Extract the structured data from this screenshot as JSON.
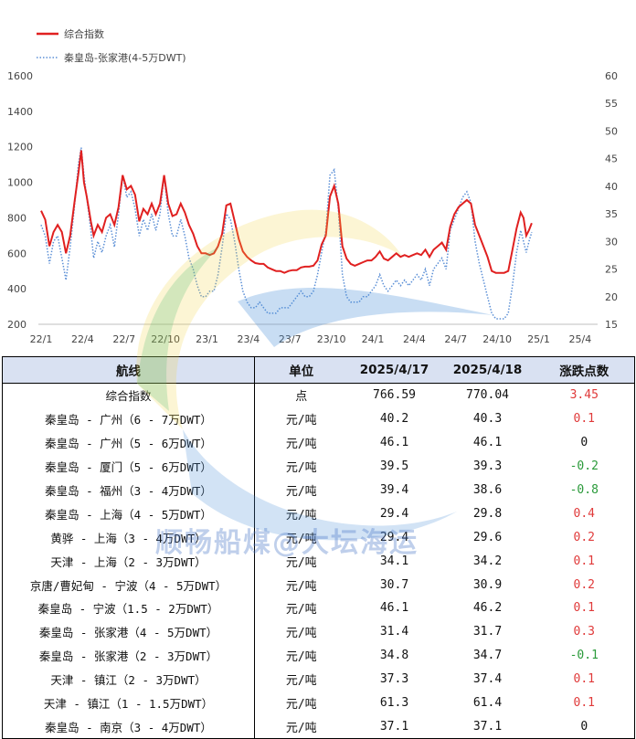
{
  "chart_data": {
    "type": "line",
    "series": [
      {
        "name": "综合指数",
        "axis": "left",
        "color": "#e02020"
      },
      {
        "name": "秦皇岛-张家港(4-5万DWT)",
        "axis": "right",
        "color": "#5b8fd6",
        "style": "dotted"
      }
    ],
    "x_tick_labels": [
      "22/1",
      "22/4",
      "22/7",
      "22/10",
      "23/1",
      "23/4",
      "23/7",
      "23/10",
      "24/1",
      "24/4",
      "24/7",
      "24/10",
      "25/1",
      "25/4"
    ],
    "x_range_months": [
      0,
      40
    ],
    "ylim_left": [
      200,
      1600
    ],
    "yticks_left": [
      200,
      400,
      600,
      800,
      1000,
      1200,
      1400,
      1600
    ],
    "ylim_right": [
      15,
      60
    ],
    "yticks_right": [
      15,
      20,
      25,
      30,
      35,
      40,
      45,
      50,
      55,
      60
    ],
    "composite": [
      [
        0,
        840
      ],
      [
        0.3,
        790
      ],
      [
        0.6,
        640
      ],
      [
        0.9,
        720
      ],
      [
        1.2,
        760
      ],
      [
        1.5,
        720
      ],
      [
        1.8,
        600
      ],
      [
        2.1,
        700
      ],
      [
        2.4,
        880
      ],
      [
        2.7,
        1050
      ],
      [
        2.9,
        1180
      ],
      [
        3.1,
        1000
      ],
      [
        3.3,
        920
      ],
      [
        3.6,
        780
      ],
      [
        3.8,
        700
      ],
      [
        4.1,
        760
      ],
      [
        4.4,
        720
      ],
      [
        4.7,
        800
      ],
      [
        5,
        820
      ],
      [
        5.3,
        760
      ],
      [
        5.6,
        860
      ],
      [
        5.9,
        1040
      ],
      [
        6.2,
        960
      ],
      [
        6.5,
        980
      ],
      [
        6.8,
        930
      ],
      [
        7.1,
        780
      ],
      [
        7.4,
        850
      ],
      [
        7.7,
        820
      ],
      [
        8,
        880
      ],
      [
        8.3,
        820
      ],
      [
        8.6,
        880
      ],
      [
        8.9,
        1040
      ],
      [
        9.2,
        880
      ],
      [
        9.5,
        810
      ],
      [
        9.8,
        820
      ],
      [
        10.1,
        880
      ],
      [
        10.4,
        830
      ],
      [
        10.7,
        760
      ],
      [
        11,
        710
      ],
      [
        11.3,
        640
      ],
      [
        11.6,
        600
      ],
      [
        11.9,
        600
      ],
      [
        12.2,
        590
      ],
      [
        12.5,
        600
      ],
      [
        12.8,
        640
      ],
      [
        13.1,
        710
      ],
      [
        13.4,
        870
      ],
      [
        13.7,
        880
      ],
      [
        14,
        780
      ],
      [
        14.3,
        680
      ],
      [
        14.6,
        610
      ],
      [
        14.9,
        580
      ],
      [
        15.2,
        560
      ],
      [
        15.5,
        545
      ],
      [
        15.8,
        540
      ],
      [
        16.1,
        540
      ],
      [
        16.4,
        520
      ],
      [
        16.7,
        510
      ],
      [
        17,
        500
      ],
      [
        17.3,
        500
      ],
      [
        17.6,
        490
      ],
      [
        17.9,
        500
      ],
      [
        18.2,
        505
      ],
      [
        18.5,
        505
      ],
      [
        18.8,
        520
      ],
      [
        19.1,
        525
      ],
      [
        19.4,
        525
      ],
      [
        19.7,
        530
      ],
      [
        20,
        560
      ],
      [
        20.3,
        650
      ],
      [
        20.6,
        700
      ],
      [
        20.9,
        920
      ],
      [
        21.2,
        980
      ],
      [
        21.5,
        880
      ],
      [
        21.8,
        640
      ],
      [
        22.1,
        570
      ],
      [
        22.4,
        540
      ],
      [
        22.7,
        530
      ],
      [
        23,
        540
      ],
      [
        23.3,
        550
      ],
      [
        23.6,
        560
      ],
      [
        23.9,
        560
      ],
      [
        24.2,
        580
      ],
      [
        24.5,
        610
      ],
      [
        24.8,
        570
      ],
      [
        25.1,
        560
      ],
      [
        25.4,
        580
      ],
      [
        25.7,
        600
      ],
      [
        26,
        580
      ],
      [
        26.3,
        590
      ],
      [
        26.6,
        580
      ],
      [
        26.9,
        590
      ],
      [
        27.2,
        600
      ],
      [
        27.5,
        590
      ],
      [
        27.8,
        620
      ],
      [
        28.1,
        580
      ],
      [
        28.4,
        620
      ],
      [
        28.7,
        640
      ],
      [
        29,
        660
      ],
      [
        29.3,
        620
      ],
      [
        29.6,
        750
      ],
      [
        29.9,
        820
      ],
      [
        30.2,
        860
      ],
      [
        30.5,
        880
      ],
      [
        30.8,
        900
      ],
      [
        31.1,
        880
      ],
      [
        31.4,
        760
      ],
      [
        31.7,
        700
      ],
      [
        32,
        640
      ],
      [
        32.3,
        580
      ],
      [
        32.6,
        500
      ],
      [
        32.9,
        490
      ],
      [
        33.2,
        490
      ],
      [
        33.5,
        490
      ],
      [
        33.8,
        500
      ],
      [
        34.1,
        620
      ],
      [
        34.4,
        740
      ],
      [
        34.7,
        830
      ],
      [
        34.9,
        800
      ],
      [
        35.1,
        700
      ],
      [
        35.3,
        730
      ],
      [
        35.5,
        770
      ]
    ],
    "route_qhd_zjg": [
      [
        0,
        33
      ],
      [
        0.3,
        31
      ],
      [
        0.6,
        26
      ],
      [
        0.9,
        30
      ],
      [
        1.2,
        31
      ],
      [
        1.5,
        27
      ],
      [
        1.8,
        23
      ],
      [
        2.1,
        29
      ],
      [
        2.4,
        36
      ],
      [
        2.7,
        44
      ],
      [
        2.9,
        47
      ],
      [
        3.1,
        42
      ],
      [
        3.3,
        38
      ],
      [
        3.6,
        32
      ],
      [
        3.8,
        27
      ],
      [
        4.1,
        30
      ],
      [
        4.4,
        28
      ],
      [
        4.7,
        31
      ],
      [
        5,
        33
      ],
      [
        5.3,
        29
      ],
      [
        5.6,
        35
      ],
      [
        5.9,
        42
      ],
      [
        6.2,
        38
      ],
      [
        6.5,
        39
      ],
      [
        6.8,
        36
      ],
      [
        7.1,
        31
      ],
      [
        7.4,
        34
      ],
      [
        7.7,
        32
      ],
      [
        8,
        35
      ],
      [
        8.3,
        32
      ],
      [
        8.6,
        35
      ],
      [
        8.9,
        42
      ],
      [
        9.2,
        35
      ],
      [
        9.5,
        31
      ],
      [
        9.8,
        31
      ],
      [
        10.1,
        34
      ],
      [
        10.4,
        31
      ],
      [
        10.7,
        27
      ],
      [
        11,
        25
      ],
      [
        11.3,
        22
      ],
      [
        11.6,
        20
      ],
      [
        11.9,
        20
      ],
      [
        12.2,
        21
      ],
      [
        12.5,
        21
      ],
      [
        12.8,
        24
      ],
      [
        13.1,
        29
      ],
      [
        13.4,
        35
      ],
      [
        13.7,
        34
      ],
      [
        14,
        30
      ],
      [
        14.3,
        25
      ],
      [
        14.6,
        21
      ],
      [
        14.9,
        19
      ],
      [
        15.2,
        18
      ],
      [
        15.5,
        18
      ],
      [
        15.8,
        19
      ],
      [
        16.1,
        18
      ],
      [
        16.4,
        17
      ],
      [
        16.7,
        17
      ],
      [
        17,
        17
      ],
      [
        17.3,
        18
      ],
      [
        17.6,
        18
      ],
      [
        17.9,
        18
      ],
      [
        18.2,
        19
      ],
      [
        18.5,
        20
      ],
      [
        18.8,
        21
      ],
      [
        19.1,
        20
      ],
      [
        19.4,
        20
      ],
      [
        19.7,
        21
      ],
      [
        20,
        24
      ],
      [
        20.3,
        28
      ],
      [
        20.6,
        32
      ],
      [
        20.9,
        42
      ],
      [
        21.2,
        43
      ],
      [
        21.5,
        36
      ],
      [
        21.8,
        24
      ],
      [
        22.1,
        20
      ],
      [
        22.4,
        19
      ],
      [
        22.7,
        19
      ],
      [
        23,
        19
      ],
      [
        23.3,
        20
      ],
      [
        23.6,
        20
      ],
      [
        23.9,
        21
      ],
      [
        24.2,
        22
      ],
      [
        24.5,
        24
      ],
      [
        24.8,
        22
      ],
      [
        25.1,
        21
      ],
      [
        25.4,
        22
      ],
      [
        25.7,
        23
      ],
      [
        26,
        22
      ],
      [
        26.3,
        23
      ],
      [
        26.6,
        22
      ],
      [
        26.9,
        23
      ],
      [
        27.2,
        24
      ],
      [
        27.5,
        23
      ],
      [
        27.8,
        25
      ],
      [
        28.1,
        22
      ],
      [
        28.4,
        25
      ],
      [
        28.7,
        26
      ],
      [
        29,
        27
      ],
      [
        29.3,
        25
      ],
      [
        29.6,
        32
      ],
      [
        29.9,
        34
      ],
      [
        30.2,
        36
      ],
      [
        30.5,
        38
      ],
      [
        30.8,
        39
      ],
      [
        31.1,
        37
      ],
      [
        31.4,
        30
      ],
      [
        31.7,
        26
      ],
      [
        32,
        23
      ],
      [
        32.3,
        20
      ],
      [
        32.6,
        17
      ],
      [
        32.9,
        16
      ],
      [
        33.2,
        16
      ],
      [
        33.5,
        16
      ],
      [
        33.8,
        17
      ],
      [
        34.1,
        22
      ],
      [
        34.4,
        28
      ],
      [
        34.7,
        32
      ],
      [
        34.9,
        30
      ],
      [
        35.1,
        28
      ],
      [
        35.3,
        30
      ],
      [
        35.5,
        31.7
      ]
    ]
  },
  "table": {
    "headers": [
      "航线",
      "单位",
      "2025/4/17",
      "2025/4/18",
      "涨跌点数"
    ],
    "rows": [
      {
        "route": "综合指数",
        "unit": "点",
        "v1": "766.59",
        "v2": "770.04",
        "change": "3.45",
        "trend": "pos"
      },
      {
        "route": "秦皇岛 - 广州（6 - 7万DWT）",
        "unit": "元/吨",
        "v1": "40.2",
        "v2": "40.3",
        "change": "0.1",
        "trend": "pos"
      },
      {
        "route": "秦皇岛 - 广州（5 - 6万DWT）",
        "unit": "元/吨",
        "v1": "46.1",
        "v2": "46.1",
        "change": "0",
        "trend": "zero"
      },
      {
        "route": "秦皇岛 - 厦门（5 - 6万DWT）",
        "unit": "元/吨",
        "v1": "39.5",
        "v2": "39.3",
        "change": "-0.2",
        "trend": "neg"
      },
      {
        "route": "秦皇岛 - 福州（3 - 4万DWT）",
        "unit": "元/吨",
        "v1": "39.4",
        "v2": "38.6",
        "change": "-0.8",
        "trend": "neg"
      },
      {
        "route": "秦皇岛 - 上海（4 - 5万DWT）",
        "unit": "元/吨",
        "v1": "29.4",
        "v2": "29.8",
        "change": "0.4",
        "trend": "pos"
      },
      {
        "route": "黄骅 - 上海（3 - 4万DWT）",
        "unit": "元/吨",
        "v1": "29.4",
        "v2": "29.6",
        "change": "0.2",
        "trend": "pos"
      },
      {
        "route": "天津 - 上海（2 - 3万DWT）",
        "unit": "元/吨",
        "v1": "34.1",
        "v2": "34.2",
        "change": "0.1",
        "trend": "pos"
      },
      {
        "route": "京唐/曹妃甸 - 宁波（4 - 5万DWT）",
        "unit": "元/吨",
        "v1": "30.7",
        "v2": "30.9",
        "change": "0.2",
        "trend": "pos"
      },
      {
        "route": "秦皇岛 - 宁波（1.5 - 2万DWT）",
        "unit": "元/吨",
        "v1": "46.1",
        "v2": "46.2",
        "change": "0.1",
        "trend": "pos"
      },
      {
        "route": "秦皇岛 - 张家港（4 - 5万DWT）",
        "unit": "元/吨",
        "v1": "31.4",
        "v2": "31.7",
        "change": "0.3",
        "trend": "pos"
      },
      {
        "route": "秦皇岛 - 张家港（2 - 3万DWT）",
        "unit": "元/吨",
        "v1": "34.8",
        "v2": "34.7",
        "change": "-0.1",
        "trend": "neg"
      },
      {
        "route": "天津 - 镇江（2 - 3万DWT）",
        "unit": "元/吨",
        "v1": "37.3",
        "v2": "37.4",
        "change": "0.1",
        "trend": "pos"
      },
      {
        "route": "天津 - 镇江（1 - 1.5万DWT）",
        "unit": "元/吨",
        "v1": "61.3",
        "v2": "61.4",
        "change": "0.1",
        "trend": "pos"
      },
      {
        "route": "秦皇岛 - 南京（3 - 4万DWT）",
        "unit": "元/吨",
        "v1": "37.1",
        "v2": "37.1",
        "change": "0",
        "trend": "zero"
      }
    ]
  },
  "watermark": {
    "text": "顺畅船煤@大坛海运"
  },
  "colors": {
    "composite": "#e02020",
    "route": "#5b8fd6",
    "positive": "#e03a3a",
    "negative": "#2a9a3a",
    "header_bg": "#d9e1f2"
  }
}
